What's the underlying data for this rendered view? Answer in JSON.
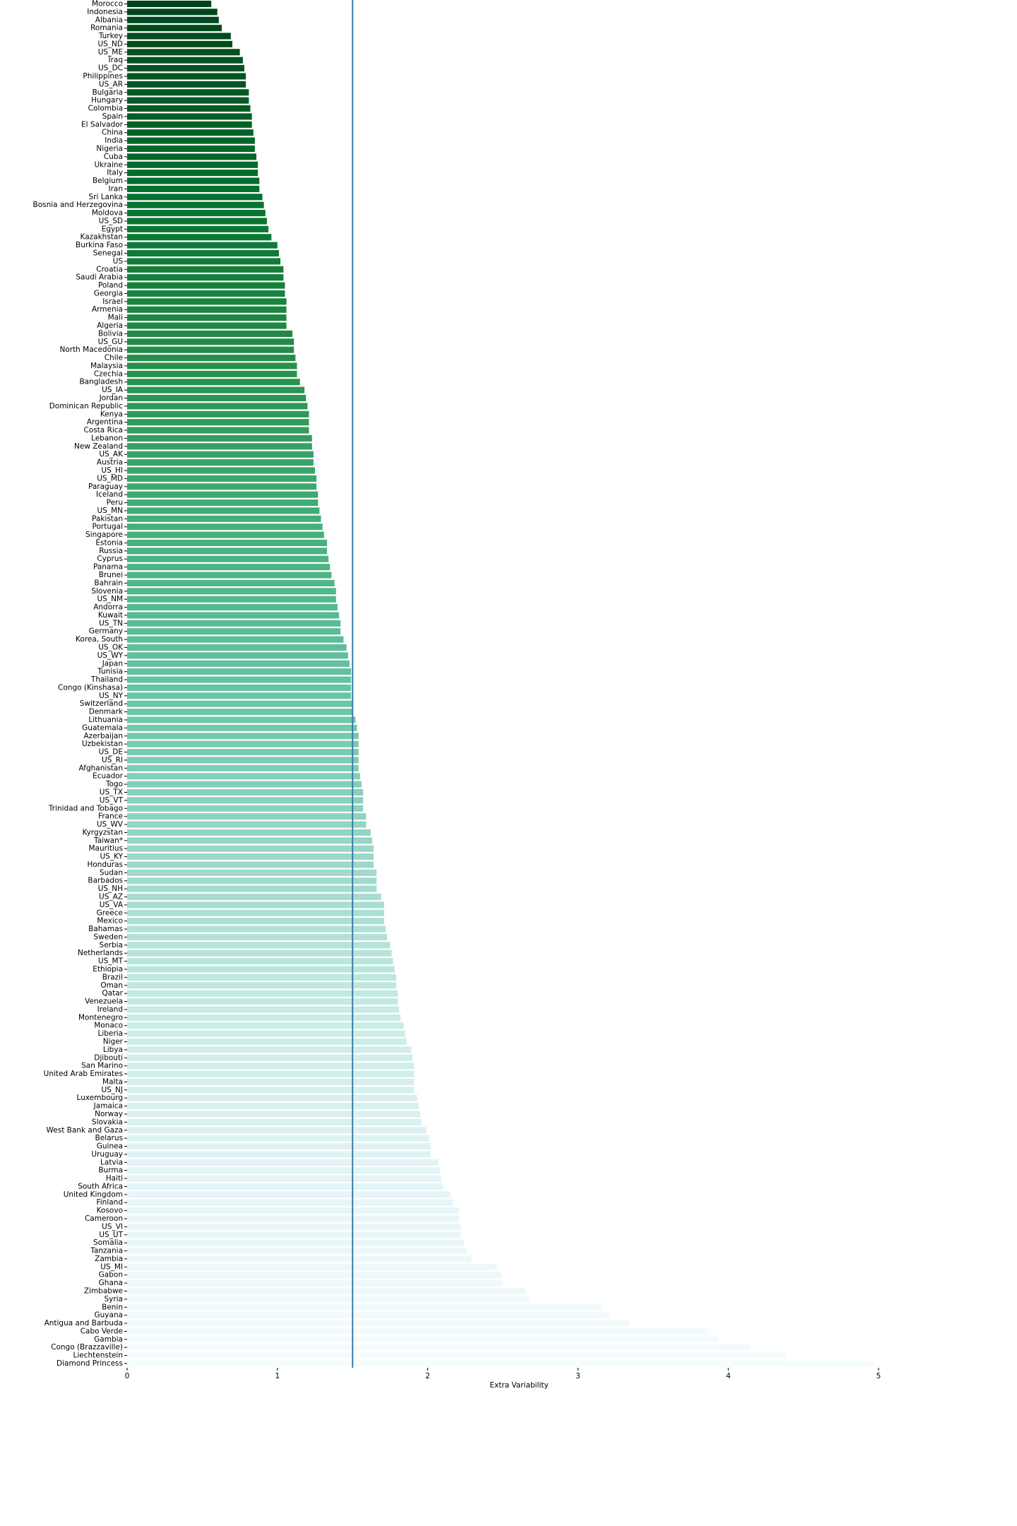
{
  "chart_data": {
    "type": "barh",
    "xlabel": "Extra Variability",
    "categories": [
      "Morocco",
      "Indonesia",
      "Albania",
      "Romania",
      "Turkey",
      "US_ND",
      "US_ME",
      "Iraq",
      "US_DC",
      "Philippines",
      "US_AR",
      "Bulgaria",
      "Hungary",
      "Colombia",
      "Spain",
      "El Salvador",
      "China",
      "India",
      "Nigeria",
      "Cuba",
      "Ukraine",
      "Italy",
      "Belgium",
      "Iran",
      "Sri Lanka",
      "Bosnia and Herzegovina",
      "Moldova",
      "US_SD",
      "Egypt",
      "Kazakhstan",
      "Burkina Faso",
      "Senegal",
      "US",
      "Croatia",
      "Saudi Arabia",
      "Poland",
      "Georgia",
      "Israel",
      "Armenia",
      "Mali",
      "Algeria",
      "Bolivia",
      "US_GU",
      "North Macedonia",
      "Chile",
      "Malaysia",
      "Czechia",
      "Bangladesh",
      "US_IA",
      "Jordan",
      "Dominican Republic",
      "Kenya",
      "Argentina",
      "Costa Rica",
      "Lebanon",
      "New Zealand",
      "US_AK",
      "Austria",
      "US_HI",
      "US_MD",
      "Paraguay",
      "Iceland",
      "Peru",
      "US_MN",
      "Pakistan",
      "Portugal",
      "Singapore",
      "Estonia",
      "Russia",
      "Cyprus",
      "Panama",
      "Brunei",
      "Bahrain",
      "Slovenia",
      "US_NM",
      "Andorra",
      "Kuwait",
      "US_TN",
      "Germany",
      "Korea, South",
      "US_OK",
      "US_WY",
      "Japan",
      "Tunisia",
      "Thailand",
      "Congo (Kinshasa)",
      "US_NY",
      "Switzerland",
      "Denmark",
      "Lithuania",
      "Guatemala",
      "Azerbaijan",
      "Uzbekistan",
      "US_DE",
      "US_RI",
      "Afghanistan",
      "Ecuador",
      "Togo",
      "US_TX",
      "US_VT",
      "Trinidad and Tobago",
      "France",
      "US_WV",
      "Kyrgyzstan",
      "Taiwan*",
      "Mauritius",
      "US_KY",
      "Honduras",
      "Sudan",
      "Barbados",
      "US_NH",
      "US_AZ",
      "US_VA",
      "Greece",
      "Mexico",
      "Bahamas",
      "Sweden",
      "Serbia",
      "Netherlands",
      "US_MT",
      "Ethiopia",
      "Brazil",
      "Oman",
      "Qatar",
      "Venezuela",
      "Ireland",
      "Montenegro",
      "Monaco",
      "Liberia",
      "Niger",
      "Libya",
      "Djibouti",
      "San Marino",
      "United Arab Emirates",
      "Malta",
      "US_NJ",
      "Luxembourg",
      "Jamaica",
      "Norway",
      "Slovakia",
      "West Bank and Gaza",
      "Belarus",
      "Guinea",
      "Uruguay",
      "Latvia",
      "Burma",
      "Haiti",
      "South Africa",
      "United Kingdom",
      "Finland",
      "Kosovo",
      "Cameroon",
      "US_VI",
      "US_UT",
      "Somalia",
      "Tanzania",
      "Zambia",
      "US_MI",
      "Gabon",
      "Ghana",
      "Zimbabwe",
      "Syria",
      "Benin",
      "Guyana",
      "Antigua and Barbuda",
      "Cabo Verde",
      "Gambia",
      "Congo (Brazzaville)",
      "Liechtenstein",
      "Diamond Princess"
    ],
    "values": [
      0.56,
      0.6,
      0.61,
      0.63,
      0.69,
      0.7,
      0.75,
      0.77,
      0.78,
      0.79,
      0.79,
      0.81,
      0.81,
      0.82,
      0.83,
      0.83,
      0.84,
      0.85,
      0.85,
      0.86,
      0.87,
      0.87,
      0.88,
      0.88,
      0.9,
      0.91,
      0.92,
      0.93,
      0.94,
      0.96,
      1.0,
      1.01,
      1.02,
      1.04,
      1.04,
      1.05,
      1.05,
      1.06,
      1.06,
      1.06,
      1.06,
      1.1,
      1.11,
      1.11,
      1.12,
      1.13,
      1.13,
      1.15,
      1.18,
      1.19,
      1.2,
      1.21,
      1.21,
      1.21,
      1.23,
      1.23,
      1.24,
      1.24,
      1.25,
      1.26,
      1.26,
      1.27,
      1.27,
      1.28,
      1.29,
      1.3,
      1.31,
      1.33,
      1.33,
      1.34,
      1.35,
      1.36,
      1.38,
      1.39,
      1.39,
      1.4,
      1.41,
      1.42,
      1.42,
      1.44,
      1.46,
      1.47,
      1.48,
      1.49,
      1.49,
      1.49,
      1.49,
      1.5,
      1.5,
      1.52,
      1.53,
      1.54,
      1.54,
      1.54,
      1.54,
      1.54,
      1.55,
      1.56,
      1.57,
      1.57,
      1.57,
      1.59,
      1.59,
      1.62,
      1.63,
      1.64,
      1.64,
      1.64,
      1.66,
      1.66,
      1.66,
      1.69,
      1.71,
      1.71,
      1.71,
      1.72,
      1.73,
      1.75,
      1.76,
      1.77,
      1.78,
      1.79,
      1.79,
      1.8,
      1.8,
      1.81,
      1.82,
      1.84,
      1.85,
      1.86,
      1.89,
      1.9,
      1.91,
      1.91,
      1.91,
      1.91,
      1.93,
      1.94,
      1.95,
      1.96,
      1.99,
      2.01,
      2.02,
      2.02,
      2.07,
      2.08,
      2.09,
      2.1,
      2.15,
      2.17,
      2.21,
      2.21,
      2.22,
      2.22,
      2.24,
      2.26,
      2.29,
      2.46,
      2.49,
      2.5,
      2.65,
      2.68,
      3.16,
      3.21,
      3.34,
      3.87,
      3.93,
      4.15,
      4.38,
      4.97
    ],
    "colormap": [
      "#00441b",
      "#006d2c",
      "#238b45",
      "#41ae76",
      "#66c2a4",
      "#99d8c9",
      "#ccece6",
      "#e5f5f9",
      "#f7fcfd"
    ],
    "xlim": [
      0,
      5
    ],
    "xticks": [
      0,
      1,
      2,
      3,
      4,
      5
    ],
    "reference_line": {
      "value": 1.5,
      "color": "#3b7ca6"
    }
  }
}
